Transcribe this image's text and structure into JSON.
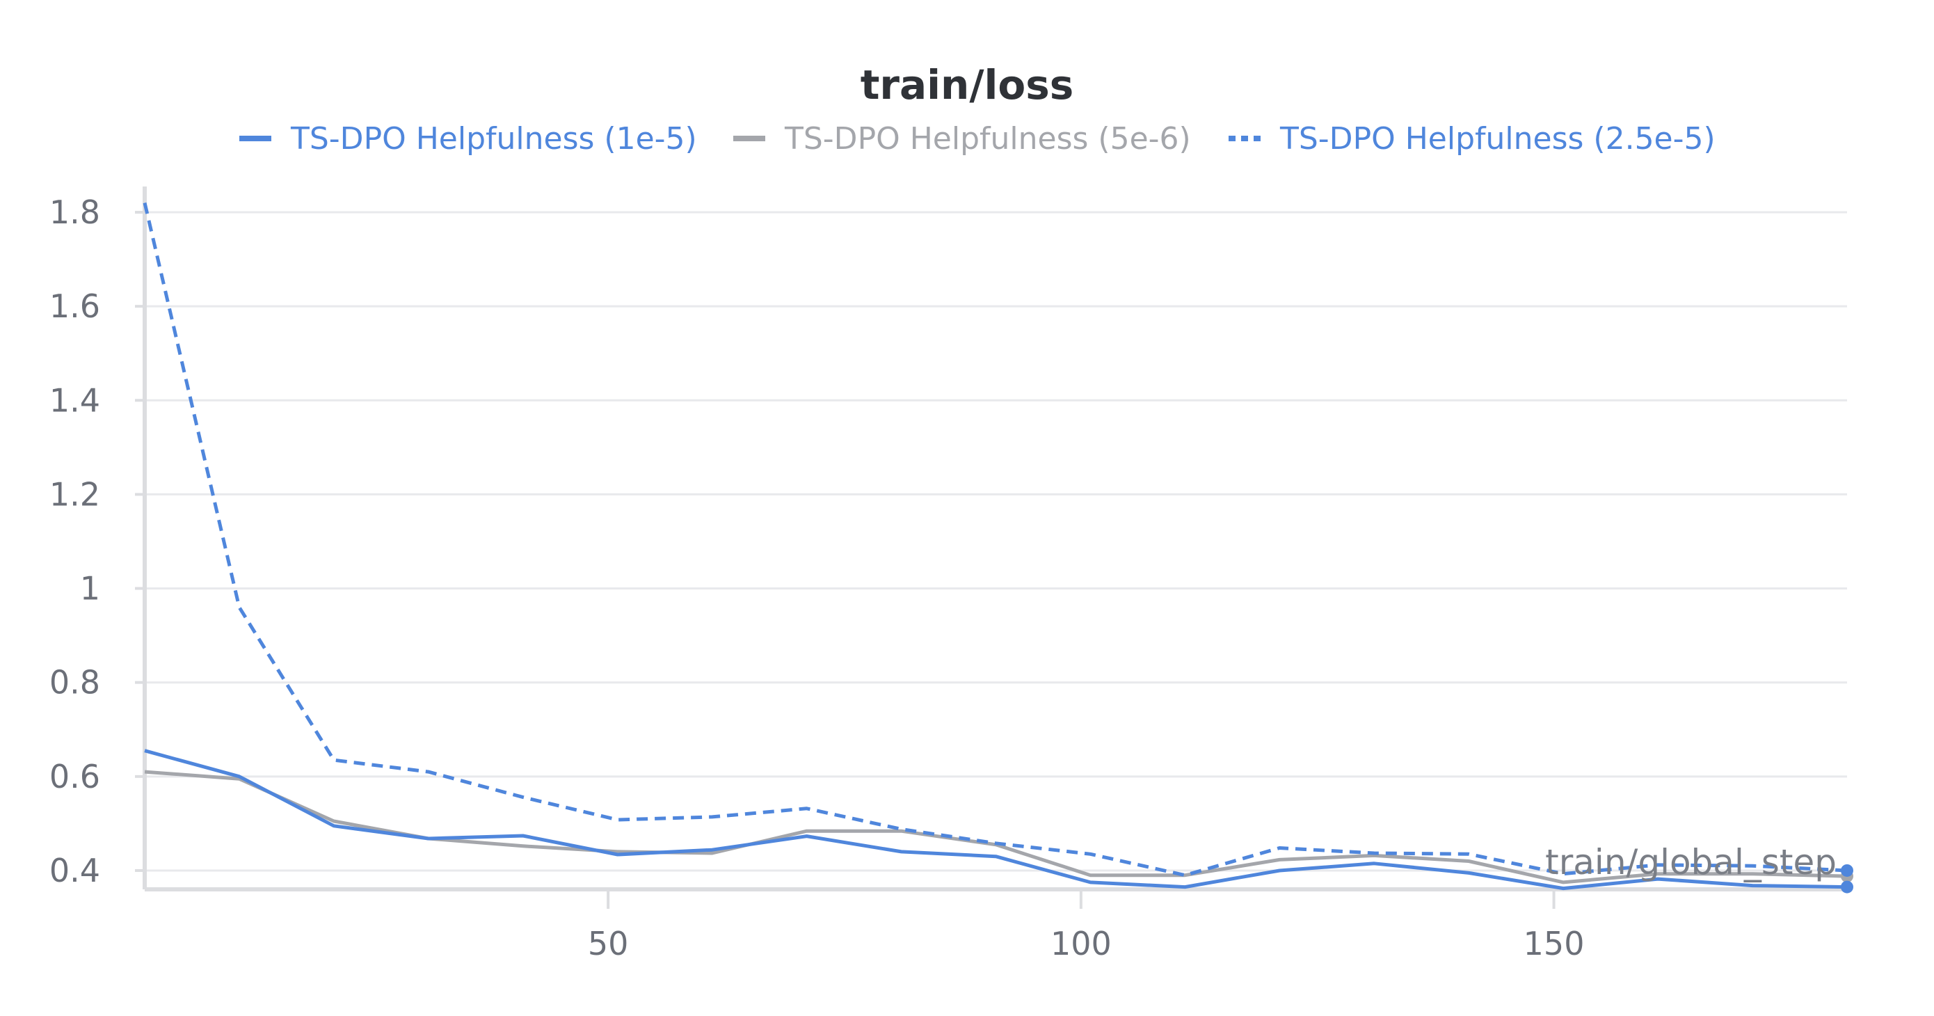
{
  "chart_data": {
    "type": "line",
    "title": "train/loss",
    "xlabel": "train/global_step",
    "ylabel": "",
    "xlim": [
      1,
      181
    ],
    "ylim": [
      0.36,
      1.84
    ],
    "xticks": [
      50,
      100,
      150
    ],
    "yticks": [
      0.4,
      0.6,
      0.8,
      1,
      1.2,
      1.4,
      1.6,
      1.8
    ],
    "ytick_labels": [
      "0.4",
      "0.6",
      "0.8",
      "1",
      "1.2",
      "1.4",
      "1.6",
      "1.8"
    ],
    "grid": true,
    "legend_position": "top",
    "series": [
      {
        "name": "TS-DPO Helpfulness (1e-5)",
        "color": "#4f86dc",
        "dash": "solid",
        "x": [
          1,
          11,
          21,
          31,
          41,
          51,
          61,
          71,
          81,
          91,
          101,
          111,
          121,
          131,
          141,
          151,
          161,
          171,
          181
        ],
        "y": [
          0.655,
          0.6,
          0.495,
          0.468,
          0.474,
          0.434,
          0.444,
          0.473,
          0.44,
          0.43,
          0.375,
          0.365,
          0.4,
          0.415,
          0.395,
          0.362,
          0.382,
          0.368,
          0.365
        ]
      },
      {
        "name": "TS-DPO Helpfulness (5e-6)",
        "color": "#a4a6ab",
        "dash": "solid",
        "x": [
          1,
          11,
          21,
          31,
          41,
          51,
          61,
          71,
          81,
          91,
          101,
          111,
          121,
          131,
          141,
          151,
          161,
          171,
          181
        ],
        "y": [
          0.61,
          0.595,
          0.505,
          0.468,
          0.452,
          0.44,
          0.437,
          0.484,
          0.484,
          0.455,
          0.39,
          0.39,
          0.423,
          0.432,
          0.42,
          0.375,
          0.393,
          0.393,
          0.388
        ]
      },
      {
        "name": "TS-DPO Helpfulness (2.5e-5)",
        "color": "#4f86dc",
        "dash": "dashed",
        "x": [
          1,
          11,
          21,
          31,
          41,
          51,
          61,
          71,
          81,
          91,
          101,
          111,
          121,
          131,
          141,
          151,
          161,
          171,
          181
        ],
        "y": [
          1.82,
          0.96,
          0.635,
          0.61,
          0.556,
          0.508,
          0.514,
          0.532,
          0.488,
          0.458,
          0.435,
          0.39,
          0.448,
          0.437,
          0.435,
          0.393,
          0.412,
          0.41,
          0.4
        ]
      }
    ]
  }
}
